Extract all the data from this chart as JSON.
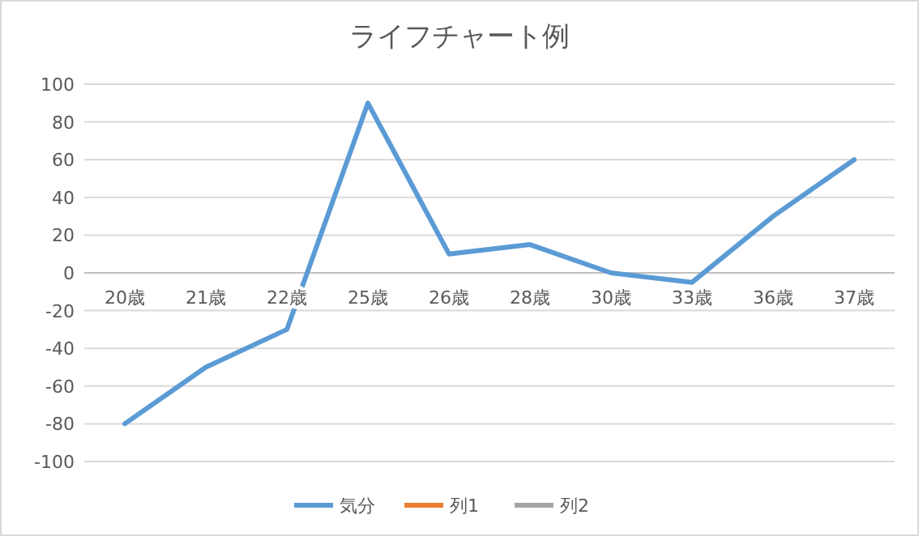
{
  "chart_data": {
    "type": "line",
    "title": "ライフチャート例",
    "categories": [
      "20歳",
      "21歳",
      "22歳",
      "25歳",
      "26歳",
      "28歳",
      "30歳",
      "33歳",
      "36歳",
      "37歳"
    ],
    "series": [
      {
        "name": "気分",
        "color": "#5b9bd5",
        "values": [
          -80,
          -50,
          -30,
          90,
          10,
          15,
          0,
          -5,
          30,
          60
        ]
      },
      {
        "name": "列1",
        "color": "#ed7d31",
        "values": [
          null,
          null,
          null,
          null,
          null,
          null,
          null,
          null,
          null,
          null
        ]
      },
      {
        "name": "列2",
        "color": "#a5a5a5",
        "values": [
          null,
          null,
          null,
          null,
          null,
          null,
          null,
          null,
          null,
          null
        ]
      }
    ],
    "ylim": [
      -100,
      100
    ],
    "yticks": [
      -100,
      -80,
      -60,
      -40,
      -20,
      0,
      20,
      40,
      60,
      80,
      100
    ],
    "grid": "y",
    "legend": "bottom",
    "marker": "none",
    "line_style": "solid"
  }
}
